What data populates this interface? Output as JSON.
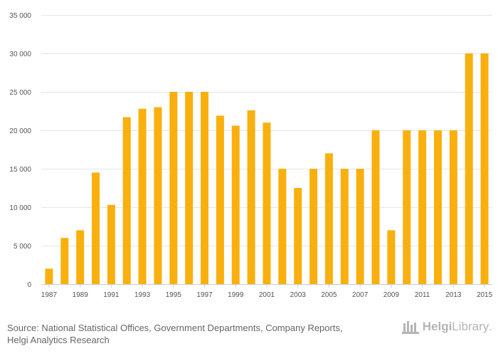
{
  "chart_data": {
    "type": "bar",
    "categories": [
      "1987",
      "1988",
      "1989",
      "1990",
      "1991",
      "1992",
      "1993",
      "1994",
      "1995",
      "1996",
      "1997",
      "1998",
      "1999",
      "2000",
      "2001",
      "2002",
      "2003",
      "2004",
      "2005",
      "2006",
      "2007",
      "2008",
      "2009",
      "2010",
      "2011",
      "2012",
      "2013",
      "2014",
      "2015"
    ],
    "x_tick_labels": [
      "1987",
      "1989",
      "1991",
      "1993",
      "1995",
      "1997",
      "1999",
      "2001",
      "2003",
      "2005",
      "2007",
      "2009",
      "2011",
      "2013",
      "2015"
    ],
    "values": [
      2000,
      6000,
      7000,
      14500,
      10300,
      21700,
      22800,
      23000,
      25000,
      25000,
      25000,
      21900,
      20600,
      22600,
      21000,
      15000,
      12500,
      15000,
      17000,
      15000,
      15000,
      20000,
      7000,
      20000,
      20000,
      20000,
      20000,
      30000,
      30000
    ],
    "y_ticks": [
      0,
      5000,
      10000,
      15000,
      20000,
      25000,
      30000,
      35000
    ],
    "y_tick_labels": [
      "0",
      "5 000",
      "10 000",
      "15 000",
      "20 000",
      "25 000",
      "30 000",
      "35 000"
    ],
    "ylim": [
      0,
      35000
    ],
    "title": "",
    "xlabel": "",
    "ylabel": "",
    "grid": true,
    "bar_color": "#f9b00e"
  },
  "footer": {
    "source_line1": "Source: National Statistical Offices, Government Departments, Company Reports,",
    "source_line2": "Helgi Analytics Research",
    "logo_part1": "Helgi",
    "logo_part2": "Library",
    "logo_part3": "."
  }
}
